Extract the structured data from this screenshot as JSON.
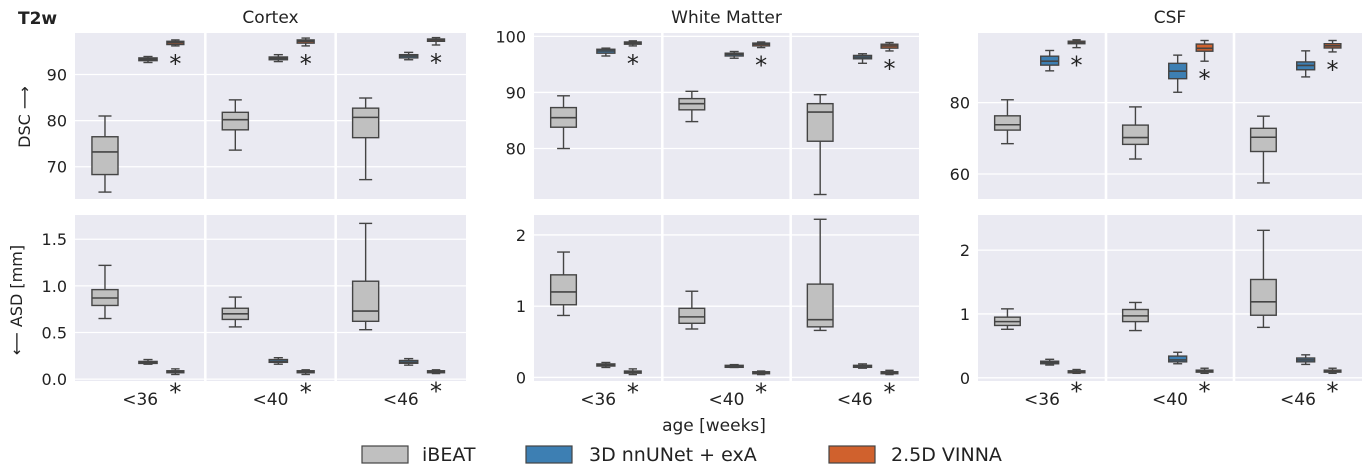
{
  "figure": {
    "tag": "T2w",
    "x_label": "age [weeks]",
    "age_groups": [
      "<36",
      "<40",
      "<46"
    ],
    "significance_marker": "*",
    "row_labels": {
      "dsc": "DSC ⟶",
      "asd": "⟵ ASD [mm]"
    }
  },
  "legend": [
    {
      "name": "iBEAT",
      "color": "#c0c0c0"
    },
    {
      "name": "3D nnUNet + exA",
      "color": "#3d7fb3"
    },
    {
      "name": "2.5D VINNA",
      "color": "#d0612d"
    }
  ],
  "chart_data": [
    {
      "type": "box",
      "title": "Cortex",
      "metric": "DSC",
      "ylabel": "DSC ⟶",
      "ylim": [
        63,
        99
      ],
      "yticks": [
        70,
        80,
        90
      ],
      "categories": [
        "<36",
        "<40",
        "<46"
      ],
      "series": [
        {
          "name": "iBEAT",
          "boxes": [
            {
              "min": 64.5,
              "q1": 68.3,
              "median": 73.2,
              "q3": 76.5,
              "max": 81.0
            },
            {
              "min": 73.6,
              "q1": 78.0,
              "median": 80.2,
              "q3": 81.8,
              "max": 84.5
            },
            {
              "min": 67.2,
              "q1": 76.3,
              "median": 80.7,
              "q3": 82.7,
              "max": 84.9
            }
          ]
        },
        {
          "name": "3D nnUNet + exA",
          "boxes": [
            {
              "min": 92.6,
              "q1": 93.0,
              "median": 93.3,
              "q3": 93.6,
              "max": 93.9
            },
            {
              "min": 92.8,
              "q1": 93.2,
              "median": 93.5,
              "q3": 93.8,
              "max": 94.3
            },
            {
              "min": 93.2,
              "q1": 93.6,
              "median": 94.0,
              "q3": 94.3,
              "max": 94.8
            }
          ]
        },
        {
          "name": "2.5D VINNA",
          "boxes": [
            {
              "min": 96.2,
              "q1": 96.5,
              "median": 96.9,
              "q3": 97.2,
              "max": 97.5
            },
            {
              "min": 96.2,
              "q1": 96.8,
              "median": 97.2,
              "q3": 97.5,
              "max": 97.9
            },
            {
              "min": 96.4,
              "q1": 97.2,
              "median": 97.5,
              "q3": 97.7,
              "max": 98.0
            }
          ]
        }
      ]
    },
    {
      "type": "box",
      "title": "White Matter",
      "metric": "DSC",
      "ylabel": "",
      "ylim": [
        71,
        100.6
      ],
      "yticks": [
        80,
        90,
        100
      ],
      "categories": [
        "<36",
        "<40",
        "<46"
      ],
      "series": [
        {
          "name": "iBEAT",
          "boxes": [
            {
              "min": 80.0,
              "q1": 83.8,
              "median": 85.5,
              "q3": 87.3,
              "max": 89.4
            },
            {
              "min": 84.8,
              "q1": 86.9,
              "median": 88.0,
              "q3": 88.9,
              "max": 90.2
            },
            {
              "min": 71.8,
              "q1": 81.3,
              "median": 86.5,
              "q3": 88.0,
              "max": 89.6
            }
          ]
        },
        {
          "name": "3D nnUNet + exA",
          "boxes": [
            {
              "min": 96.5,
              "q1": 97.0,
              "median": 97.4,
              "q3": 97.7,
              "max": 97.9
            },
            {
              "min": 96.1,
              "q1": 96.5,
              "median": 96.8,
              "q3": 97.0,
              "max": 97.3
            },
            {
              "min": 95.2,
              "q1": 96.0,
              "median": 96.3,
              "q3": 96.6,
              "max": 96.9
            }
          ]
        },
        {
          "name": "2.5D VINNA",
          "boxes": [
            {
              "min": 98.3,
              "q1": 98.6,
              "median": 98.8,
              "q3": 99.0,
              "max": 99.2
            },
            {
              "min": 98.0,
              "q1": 98.3,
              "median": 98.6,
              "q3": 98.8,
              "max": 99.0
            },
            {
              "min": 97.4,
              "q1": 97.9,
              "median": 98.3,
              "q3": 98.6,
              "max": 98.9
            }
          ]
        }
      ]
    },
    {
      "type": "box",
      "title": "CSF",
      "metric": "DSC",
      "ylabel": "",
      "ylim": [
        53,
        99.5
      ],
      "yticks": [
        60,
        80
      ],
      "categories": [
        "<36",
        "<40",
        "<46"
      ],
      "series": [
        {
          "name": "iBEAT",
          "boxes": [
            {
              "min": 68.5,
              "q1": 72.3,
              "median": 73.8,
              "q3": 76.3,
              "max": 80.8
            },
            {
              "min": 64.2,
              "q1": 68.3,
              "median": 70.2,
              "q3": 73.7,
              "max": 78.8
            },
            {
              "min": 57.5,
              "q1": 66.3,
              "median": 70.3,
              "q3": 72.8,
              "max": 76.2
            }
          ]
        },
        {
          "name": "3D nnUNet + exA",
          "boxes": [
            {
              "min": 88.9,
              "q1": 90.5,
              "median": 91.6,
              "q3": 93.0,
              "max": 94.6
            },
            {
              "min": 82.9,
              "q1": 86.7,
              "median": 88.8,
              "q3": 91.0,
              "max": 93.3
            },
            {
              "min": 87.2,
              "q1": 89.2,
              "median": 90.4,
              "q3": 91.4,
              "max": 94.5
            }
          ]
        },
        {
          "name": "2.5D VINNA",
          "boxes": [
            {
              "min": 95.4,
              "q1": 96.5,
              "median": 96.8,
              "q3": 97.2,
              "max": 97.6
            },
            {
              "min": 91.6,
              "q1": 94.4,
              "median": 95.2,
              "q3": 96.4,
              "max": 97.4
            },
            {
              "min": 94.2,
              "q1": 95.3,
              "median": 95.9,
              "q3": 96.5,
              "max": 97.4
            }
          ]
        }
      ]
    },
    {
      "type": "box",
      "title": "",
      "metric": "ASD",
      "ylabel": "⟵ ASD [mm]",
      "ylim": [
        -0.02,
        1.76
      ],
      "yticks": [
        0.0,
        0.5,
        1.0,
        1.5
      ],
      "ytick_labels": [
        "0.0",
        "0.5",
        "1.0",
        "1.5"
      ],
      "categories": [
        "<36",
        "<40",
        "<46"
      ],
      "series": [
        {
          "name": "iBEAT",
          "boxes": [
            {
              "min": 0.65,
              "q1": 0.79,
              "median": 0.87,
              "q3": 0.96,
              "max": 1.22
            },
            {
              "min": 0.56,
              "q1": 0.64,
              "median": 0.7,
              "q3": 0.76,
              "max": 0.88
            },
            {
              "min": 0.53,
              "q1": 0.62,
              "median": 0.73,
              "q3": 1.05,
              "max": 1.67
            }
          ]
        },
        {
          "name": "3D nnUNet + exA",
          "boxes": [
            {
              "min": 0.16,
              "q1": 0.17,
              "median": 0.18,
              "q3": 0.19,
              "max": 0.21
            },
            {
              "min": 0.16,
              "q1": 0.18,
              "median": 0.19,
              "q3": 0.21,
              "max": 0.23
            },
            {
              "min": 0.15,
              "q1": 0.17,
              "median": 0.18,
              "q3": 0.2,
              "max": 0.22
            }
          ]
        },
        {
          "name": "2.5D VINNA",
          "boxes": [
            {
              "min": 0.05,
              "q1": 0.07,
              "median": 0.08,
              "q3": 0.09,
              "max": 0.11
            },
            {
              "min": 0.05,
              "q1": 0.07,
              "median": 0.08,
              "q3": 0.09,
              "max": 0.1
            },
            {
              "min": 0.06,
              "q1": 0.07,
              "median": 0.08,
              "q3": 0.09,
              "max": 0.1
            }
          ]
        }
      ]
    },
    {
      "type": "box",
      "title": "",
      "metric": "ASD",
      "ylabel": "",
      "ylim": [
        -0.05,
        2.28
      ],
      "yticks": [
        0,
        1,
        2
      ],
      "ytick_labels": [
        "0",
        "1",
        "2"
      ],
      "categories": [
        "<36",
        "<40",
        "<46"
      ],
      "series": [
        {
          "name": "iBEAT",
          "boxes": [
            {
              "min": 0.87,
              "q1": 1.02,
              "median": 1.2,
              "q3": 1.44,
              "max": 1.76
            },
            {
              "min": 0.68,
              "q1": 0.76,
              "median": 0.85,
              "q3": 0.97,
              "max": 1.21
            },
            {
              "min": 0.66,
              "q1": 0.71,
              "median": 0.81,
              "q3": 1.31,
              "max": 2.22
            }
          ]
        },
        {
          "name": "3D nnUNet + exA",
          "boxes": [
            {
              "min": 0.14,
              "q1": 0.16,
              "median": 0.17,
              "q3": 0.19,
              "max": 0.21
            },
            {
              "min": 0.14,
              "q1": 0.15,
              "median": 0.16,
              "q3": 0.17,
              "max": 0.18
            },
            {
              "min": 0.13,
              "q1": 0.15,
              "median": 0.16,
              "q3": 0.17,
              "max": 0.19
            }
          ]
        },
        {
          "name": "2.5D VINNA",
          "boxes": [
            {
              "min": 0.04,
              "q1": 0.06,
              "median": 0.08,
              "q3": 0.09,
              "max": 0.12
            },
            {
              "min": 0.04,
              "q1": 0.06,
              "median": 0.07,
              "q3": 0.08,
              "max": 0.09
            },
            {
              "min": 0.04,
              "q1": 0.06,
              "median": 0.07,
              "q3": 0.08,
              "max": 0.1
            }
          ]
        }
      ]
    },
    {
      "type": "box",
      "title": "",
      "metric": "ASD",
      "ylabel": "",
      "ylim": [
        -0.05,
        2.55
      ],
      "yticks": [
        0,
        1,
        2
      ],
      "ytick_labels": [
        "0",
        "1",
        "2"
      ],
      "categories": [
        "<36",
        "<40",
        "<46"
      ],
      "series": [
        {
          "name": "iBEAT",
          "boxes": [
            {
              "min": 0.76,
              "q1": 0.82,
              "median": 0.88,
              "q3": 0.95,
              "max": 1.08
            },
            {
              "min": 0.74,
              "q1": 0.88,
              "median": 0.97,
              "q3": 1.07,
              "max": 1.18
            },
            {
              "min": 0.79,
              "q1": 0.98,
              "median": 1.19,
              "q3": 1.54,
              "max": 2.31
            }
          ]
        },
        {
          "name": "3D nnUNet + exA",
          "boxes": [
            {
              "min": 0.2,
              "q1": 0.22,
              "median": 0.24,
              "q3": 0.26,
              "max": 0.29
            },
            {
              "min": 0.22,
              "q1": 0.25,
              "median": 0.28,
              "q3": 0.34,
              "max": 0.4
            },
            {
              "min": 0.21,
              "q1": 0.25,
              "median": 0.28,
              "q3": 0.31,
              "max": 0.36
            }
          ]
        },
        {
          "name": "2.5D VINNA",
          "boxes": [
            {
              "min": 0.07,
              "q1": 0.09,
              "median": 0.1,
              "q3": 0.11,
              "max": 0.13
            },
            {
              "min": 0.07,
              "q1": 0.09,
              "median": 0.11,
              "q3": 0.12,
              "max": 0.15
            },
            {
              "min": 0.07,
              "q1": 0.09,
              "median": 0.1,
              "q3": 0.12,
              "max": 0.15
            }
          ]
        }
      ]
    }
  ]
}
